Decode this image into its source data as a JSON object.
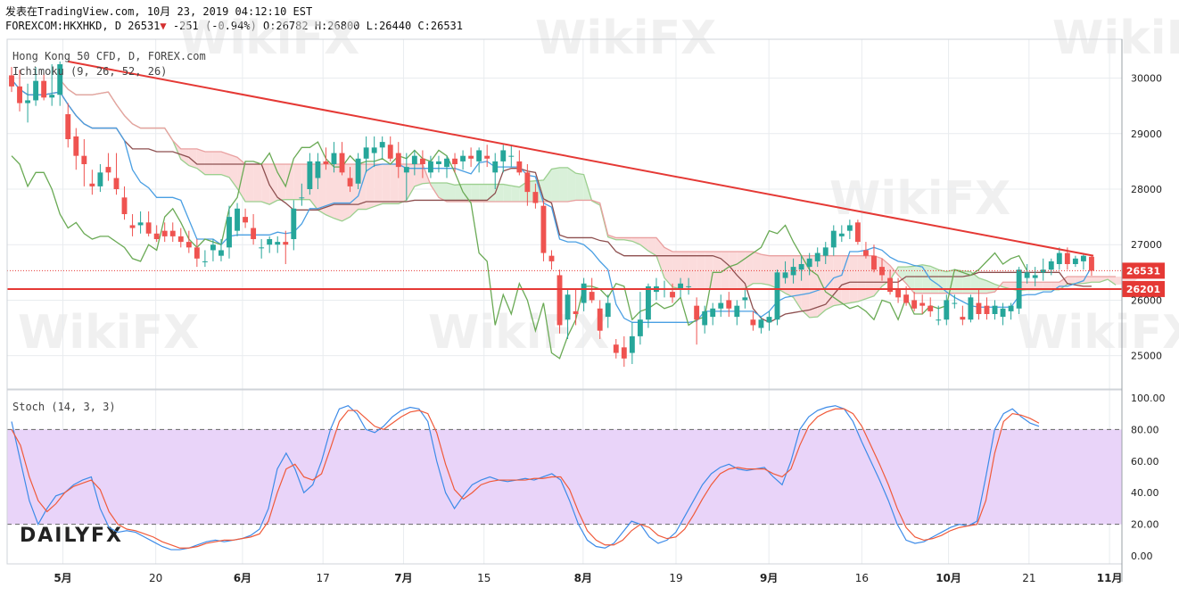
{
  "header": {
    "line1": "发表在TradingView.com, 10月 23, 2019 04:12:10 EST",
    "symbol": "FOREXCOM:HKXHKD, D",
    "price": "26531",
    "arrow": "▼",
    "change": "-251 (-0.94%)",
    "ohlc": "O:26782 H:26800 L:26440 C:26531"
  },
  "main_panel": {
    "title": "Hong Kong 50 CFD, D, FOREX.com",
    "indicator": "Ichimoku (9, 26, 52, 26)"
  },
  "stoch_panel": {
    "title": "Stoch (14, 3, 3)"
  },
  "price_tags": {
    "last": "26531",
    "line": "26201"
  },
  "colors": {
    "up": "#26a69a",
    "down": "#ef5350",
    "trendline": "#e53935",
    "kijun": "#8d4f4f",
    "tenkan": "#4a9fe3",
    "chikou": "#6aaa55",
    "cloud_bull": "#d9f0d9",
    "cloud_bear": "#fbdcdc",
    "stoch_k": "#3d8be8",
    "stoch_d": "#f05a3a",
    "stoch_band": "#e9d4f9"
  },
  "watermarks": [
    "WikiFX",
    "DAILYFX"
  ],
  "chart_data": [
    {
      "type": "candlestick",
      "title": "Hong Kong 50 CFD, D, FOREX.com",
      "y_ticks": [
        25000,
        26000,
        27000,
        28000,
        29000,
        30000
      ],
      "x_ticks": [
        "5月",
        "20",
        "6月",
        "17",
        "7月",
        "15",
        "8月",
        "19",
        "9月",
        "16",
        "10月",
        "21",
        "11月"
      ],
      "ylim": [
        24400,
        30700
      ],
      "candles": [
        [
          30050,
          30200,
          29750,
          29850
        ],
        [
          29850,
          30150,
          29400,
          29550
        ],
        [
          29550,
          29900,
          29200,
          29600
        ],
        [
          29600,
          30200,
          29500,
          29950
        ],
        [
          29950,
          30100,
          29600,
          29650
        ],
        [
          29650,
          30250,
          29500,
          29700
        ],
        [
          29700,
          30300,
          29500,
          30250
        ],
        [
          29350,
          29550,
          28750,
          28900
        ],
        [
          28950,
          29100,
          28350,
          28600
        ],
        [
          28600,
          28900,
          28050,
          28450
        ],
        [
          28100,
          28350,
          27900,
          28050
        ],
        [
          28050,
          28450,
          27950,
          28300
        ],
        [
          28400,
          28650,
          28150,
          28300
        ],
        [
          28200,
          28650,
          27900,
          28000
        ],
        [
          27850,
          28050,
          27450,
          27550
        ],
        [
          27350,
          27550,
          27150,
          27300
        ],
        [
          27350,
          27600,
          27200,
          27400
        ],
        [
          27400,
          27600,
          27150,
          27200
        ],
        [
          27200,
          27350,
          27050,
          27100
        ],
        [
          27250,
          27400,
          27050,
          27150
        ],
        [
          27250,
          27400,
          27050,
          27150
        ],
        [
          27150,
          27300,
          26950,
          27050
        ],
        [
          27050,
          27250,
          26850,
          26950
        ],
        [
          26950,
          27100,
          26600,
          26750
        ],
        [
          26700,
          26900,
          26600,
          26700
        ],
        [
          26900,
          27100,
          26700,
          27000
        ],
        [
          26800,
          27100,
          26700,
          26900
        ],
        [
          26950,
          27700,
          26750,
          27500
        ],
        [
          27250,
          27750,
          27150,
          27650
        ],
        [
          27500,
          27650,
          27300,
          27400
        ],
        [
          27300,
          27550,
          27000,
          27100
        ],
        [
          26950,
          27100,
          26750,
          26950
        ],
        [
          27000,
          27150,
          26850,
          27100
        ],
        [
          27000,
          27150,
          26850,
          27050
        ],
        [
          27050,
          27250,
          26650,
          27000
        ],
        [
          27100,
          27800,
          26900,
          27650
        ],
        [
          27850,
          28100,
          27700,
          27850
        ],
        [
          28000,
          28650,
          27900,
          28500
        ],
        [
          28200,
          28650,
          28000,
          28500
        ],
        [
          28500,
          28750,
          28350,
          28450
        ],
        [
          28450,
          28850,
          28300,
          28650
        ],
        [
          28650,
          28850,
          28250,
          28300
        ],
        [
          28200,
          28400,
          27950,
          28050
        ],
        [
          28100,
          28650,
          28000,
          28550
        ],
        [
          28550,
          28950,
          28300,
          28750
        ],
        [
          28650,
          28950,
          28400,
          28750
        ],
        [
          28750,
          28950,
          28550,
          28850
        ],
        [
          28800,
          28950,
          28500,
          28550
        ],
        [
          28650,
          28850,
          28200,
          28400
        ],
        [
          28300,
          28650,
          27800,
          28400
        ],
        [
          28450,
          28700,
          28250,
          28600
        ],
        [
          28550,
          28700,
          28200,
          28450
        ],
        [
          28300,
          28600,
          28200,
          28500
        ],
        [
          28450,
          28600,
          28300,
          28500
        ],
        [
          28400,
          28600,
          28200,
          28550
        ],
        [
          28550,
          28650,
          28300,
          28450
        ],
        [
          28500,
          28700,
          28350,
          28600
        ],
        [
          28600,
          28750,
          28400,
          28550
        ],
        [
          28500,
          28750,
          28300,
          28700
        ],
        [
          28600,
          28800,
          28400,
          28550
        ],
        [
          28300,
          28650,
          28000,
          28500
        ],
        [
          28500,
          28800,
          28300,
          28700
        ],
        [
          28600,
          28800,
          28400,
          28600
        ],
        [
          28500,
          28700,
          28250,
          28300
        ],
        [
          28300,
          28450,
          27700,
          27950
        ],
        [
          27950,
          28100,
          27650,
          27750
        ],
        [
          27700,
          27800,
          26700,
          26850
        ],
        [
          26800,
          26900,
          26550,
          26700
        ],
        [
          26450,
          26550,
          25400,
          25550
        ],
        [
          25650,
          26200,
          25300,
          26100
        ],
        [
          25800,
          26200,
          25550,
          25750
        ],
        [
          25950,
          26400,
          25800,
          26300
        ],
        [
          26150,
          26400,
          25950,
          26000
        ],
        [
          25850,
          26000,
          25300,
          25450
        ],
        [
          25700,
          26100,
          25500,
          25950
        ],
        [
          25200,
          25300,
          24950,
          25050
        ],
        [
          25150,
          25350,
          24800,
          24950
        ],
        [
          25050,
          25600,
          24850,
          25350
        ],
        [
          25350,
          26150,
          25200,
          25650
        ],
        [
          25650,
          26300,
          25500,
          26250
        ],
        [
          26150,
          26400,
          26000,
          26250
        ],
        [
          26200,
          26350,
          26050,
          26200
        ],
        [
          26150,
          26300,
          25950,
          26050
        ],
        [
          26200,
          26400,
          26050,
          26300
        ],
        [
          26250,
          26400,
          26100,
          26250
        ],
        [
          25900,
          26050,
          25200,
          25650
        ],
        [
          25550,
          25900,
          25400,
          25800
        ],
        [
          25700,
          25950,
          25550,
          25850
        ],
        [
          25850,
          26100,
          25700,
          25950
        ],
        [
          26000,
          26150,
          25700,
          25850
        ],
        [
          25700,
          26000,
          25550,
          25900
        ],
        [
          26000,
          26200,
          25850,
          26050
        ],
        [
          25650,
          25800,
          25450,
          25550
        ],
        [
          25500,
          25700,
          25400,
          25650
        ],
        [
          25600,
          25800,
          25450,
          25700
        ],
        [
          25650,
          26550,
          25550,
          26500
        ],
        [
          26400,
          26700,
          26300,
          26500
        ],
        [
          26450,
          26750,
          26300,
          26600
        ],
        [
          26550,
          26800,
          26350,
          26650
        ],
        [
          26600,
          26850,
          26450,
          26750
        ],
        [
          26700,
          26950,
          26600,
          26850
        ],
        [
          26800,
          27050,
          26650,
          26950
        ],
        [
          26950,
          27350,
          26800,
          27250
        ],
        [
          27150,
          27350,
          27050,
          27200
        ],
        [
          27250,
          27450,
          27100,
          27350
        ],
        [
          27400,
          27450,
          27000,
          27050
        ],
        [
          26900,
          27050,
          26750,
          26800
        ],
        [
          26800,
          27000,
          26500,
          26550
        ],
        [
          26600,
          26750,
          26350,
          26450
        ],
        [
          26400,
          26550,
          26100,
          26150
        ],
        [
          26200,
          26400,
          25950,
          26050
        ],
        [
          26100,
          26250,
          25900,
          25950
        ],
        [
          26000,
          26150,
          25800,
          25850
        ],
        [
          25950,
          26100,
          25750,
          25900
        ],
        [
          25900,
          26050,
          25700,
          25800
        ],
        [
          25650,
          25900,
          25550,
          25650
        ],
        [
          25650,
          26100,
          25550,
          26000
        ],
        [
          25950,
          26100,
          25850,
          25950
        ],
        [
          25700,
          25900,
          25550,
          25650
        ],
        [
          25650,
          26100,
          25600,
          26050
        ],
        [
          25950,
          26200,
          25650,
          25750
        ],
        [
          25900,
          26050,
          25650,
          25750
        ],
        [
          25750,
          26000,
          25650,
          25900
        ],
        [
          25700,
          25950,
          25550,
          25850
        ],
        [
          25800,
          25950,
          25650,
          25900
        ],
        [
          25850,
          26600,
          25750,
          26550
        ],
        [
          26400,
          26650,
          26300,
          26500
        ],
        [
          26400,
          26600,
          26250,
          26450
        ],
        [
          26500,
          26750,
          26350,
          26550
        ],
        [
          26550,
          26750,
          26450,
          26700
        ],
        [
          26650,
          26950,
          26550,
          26850
        ],
        [
          26850,
          26950,
          26550,
          26650
        ],
        [
          26650,
          26800,
          26600,
          26750
        ],
        [
          26700,
          26850,
          26550,
          26800
        ],
        [
          26782,
          26800,
          26440,
          26531
        ]
      ],
      "trendline": {
        "from": {
          "date": "5月",
          "value": 30300
        },
        "to": {
          "date": "10月 25",
          "value": 26800
        }
      },
      "horizontal_line": 26201,
      "last_price": 26531
    },
    {
      "type": "line",
      "title": "Stoch (14, 3, 3)",
      "y_ticks": [
        "100.00",
        "80.00",
        "60.00",
        "40.00",
        "20.00",
        "0.00"
      ],
      "ylim": [
        -5,
        105
      ],
      "bands": [
        20,
        80
      ],
      "series": [
        {
          "values": [
            85,
            60,
            35,
            20,
            30,
            38,
            40,
            45,
            48,
            50,
            30,
            18,
            15,
            16,
            15,
            12,
            9,
            6,
            4,
            4,
            5,
            7,
            9,
            10,
            9,
            10,
            11,
            13,
            17,
            30,
            55,
            65,
            55,
            40,
            45,
            60,
            80,
            93,
            95,
            90,
            80,
            78,
            82,
            88,
            92,
            94,
            93,
            85,
            60,
            40,
            30,
            38,
            45,
            48,
            50,
            48,
            47,
            48,
            49,
            48,
            50,
            52,
            48,
            35,
            20,
            10,
            6,
            5,
            8,
            15,
            22,
            20,
            12,
            8,
            10,
            15,
            25,
            35,
            45,
            52,
            56,
            58,
            55,
            54,
            55,
            56,
            50,
            45,
            60,
            80,
            88,
            92,
            94,
            95,
            93,
            85,
            72,
            60,
            48,
            35,
            20,
            10,
            8,
            9,
            12,
            15,
            18,
            20,
            19,
            22,
            50,
            80,
            90,
            93,
            88,
            84,
            82
          ]
        },
        {
          "values": [
            80,
            70,
            50,
            35,
            28,
            33,
            40,
            44,
            46,
            48,
            42,
            28,
            20,
            17,
            16,
            14,
            12,
            9,
            7,
            5,
            5,
            6,
            8,
            9,
            10,
            10,
            11,
            12,
            14,
            22,
            40,
            55,
            58,
            50,
            48,
            52,
            68,
            85,
            92,
            92,
            87,
            82,
            80,
            84,
            88,
            91,
            92,
            90,
            78,
            58,
            42,
            36,
            40,
            45,
            47,
            48,
            48,
            48,
            48,
            49,
            49,
            50,
            50,
            42,
            28,
            16,
            10,
            7,
            7,
            10,
            16,
            20,
            18,
            13,
            11,
            12,
            17,
            26,
            36,
            45,
            52,
            55,
            56,
            55,
            55,
            55,
            52,
            50,
            55,
            70,
            82,
            88,
            91,
            93,
            93,
            90,
            82,
            70,
            58,
            45,
            30,
            18,
            12,
            10,
            11,
            13,
            16,
            18,
            19,
            20,
            35,
            65,
            85,
            90,
            89,
            87,
            84
          ]
        }
      ]
    }
  ]
}
